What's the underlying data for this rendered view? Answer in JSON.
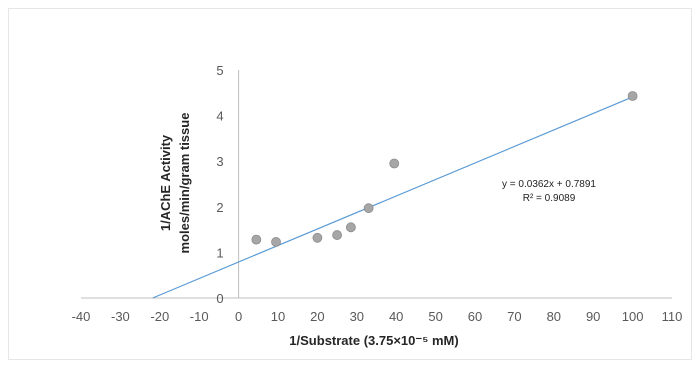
{
  "chart_data": {
    "type": "scatter",
    "title": "",
    "xlabel": "1/Substrate (3.75×10⁻⁵ mM)",
    "ylabel_lines": [
      "1/AChE Activity",
      "moles/min/gram tissue"
    ],
    "xlim": [
      -40,
      110
    ],
    "ylim": [
      0,
      5
    ],
    "x_ticks": [
      "-40",
      "-30",
      "-20",
      "-10",
      "0",
      "10",
      "20",
      "30",
      "40",
      "50",
      "60",
      "70",
      "80",
      "90",
      "100",
      "110"
    ],
    "y_ticks": [
      "0",
      "1",
      "2",
      "3",
      "4",
      "5"
    ],
    "points": [
      {
        "x": 4.5,
        "y": 1.28
      },
      {
        "x": 9.5,
        "y": 1.23
      },
      {
        "x": 20,
        "y": 1.32
      },
      {
        "x": 25,
        "y": 1.38
      },
      {
        "x": 28.5,
        "y": 1.55
      },
      {
        "x": 33,
        "y": 1.97
      },
      {
        "x": 39.5,
        "y": 2.95
      },
      {
        "x": 100,
        "y": 4.43
      }
    ],
    "trendline": {
      "slope": 0.0362,
      "intercept": 0.7891,
      "x_range": [
        -21.8,
        100
      ]
    },
    "equation_text": "y = 0.0362x + 0.7891",
    "r2_text": "R² = 0.9089",
    "grid": false,
    "legend": "none",
    "colors": {
      "marker_fill": "#a6a6a6",
      "marker_stroke": "#8c8c8c",
      "trendline": "#5b9bd5",
      "axis": "#bfbfbf"
    }
  }
}
